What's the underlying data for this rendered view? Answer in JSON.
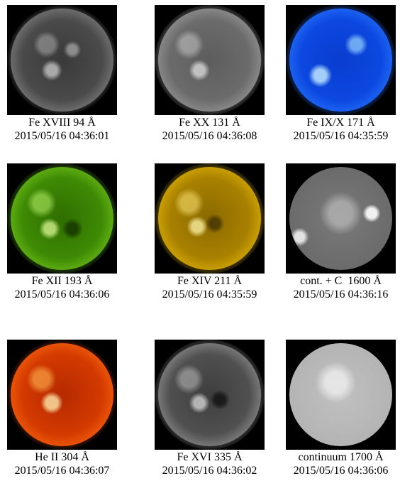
{
  "panels": [
    {
      "id": "94",
      "line": "Fe XVIII 94 Å",
      "time": "2015/05/16 04:36:01"
    },
    {
      "id": "131",
      "line": "Fe XX 131 Å",
      "time": "2015/05/16 04:36:08"
    },
    {
      "id": "171",
      "line": "Fe IX/X 171 Å",
      "time": "2015/05/16 04:35:59"
    },
    {
      "id": "193",
      "line": "Fe XII 193 Å",
      "time": "2015/05/16 04:36:06"
    },
    {
      "id": "211",
      "line": "Fe XIV 211 Å",
      "time": "2015/05/16 04:35:59"
    },
    {
      "id": "1600",
      "line": "cont. + C  1600 Å",
      "time": "2015/05/16 04:36:16"
    },
    {
      "id": "304",
      "line": "He II 304 Å",
      "time": "2015/05/16 04:36:07"
    },
    {
      "id": "335",
      "line": "Fe XVI 335 Å",
      "time": "2015/05/16 04:36:02"
    },
    {
      "id": "1700",
      "line": "continuum 1700 Å",
      "time": "2015/05/16 04:36:06"
    }
  ],
  "colors": {
    "94": "#6a6a6a",
    "131": "#8a8a8a",
    "171": "#0c48e0",
    "193": "#3e8a05",
    "211": "#a98100",
    "1600": "#6b6b6b",
    "304": "#d33a00",
    "335": "#505050",
    "1700": "#b4b4b4"
  }
}
